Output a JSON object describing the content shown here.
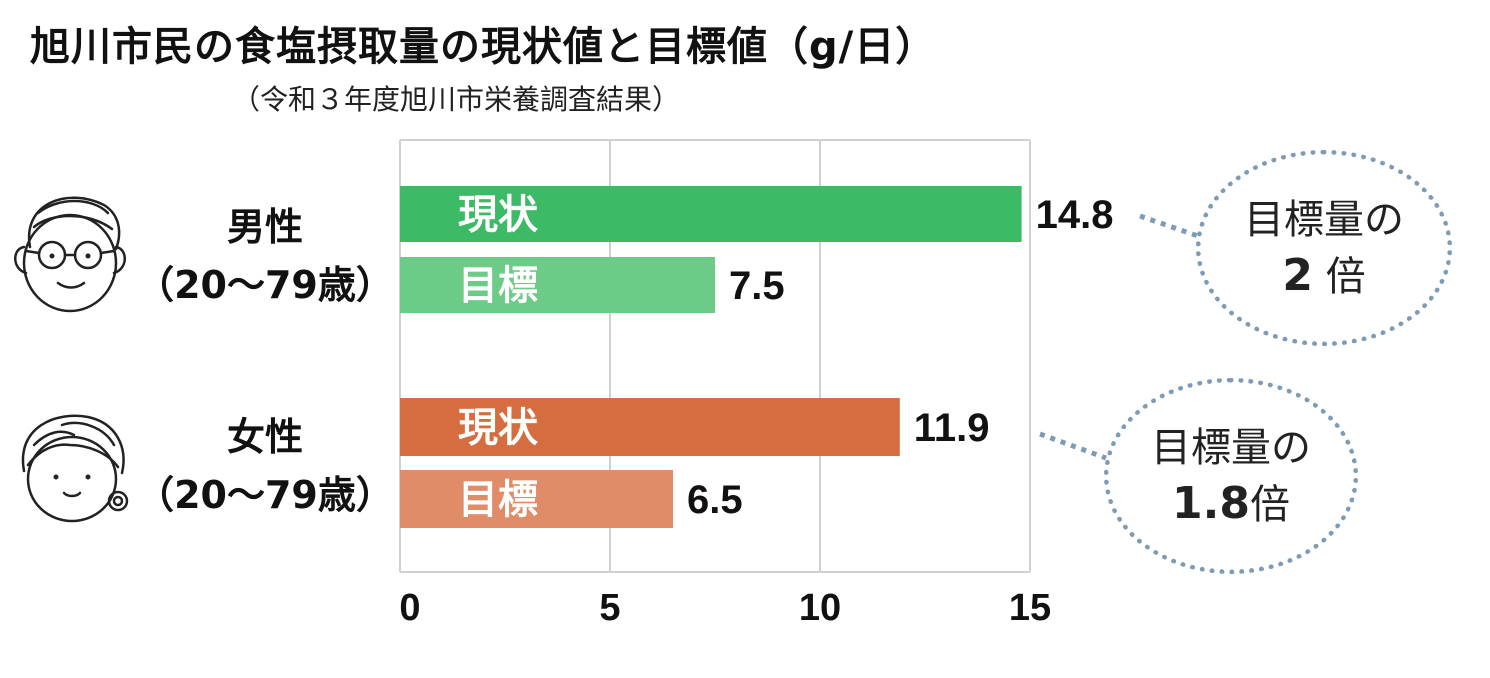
{
  "title": "旭川市民の食塩摂取量の現状値と目標値（g/日）",
  "subtitle": "（令和３年度旭川市栄養調査結果）",
  "groups": [
    {
      "name": "男性",
      "age": "（20～79歳）",
      "face": "man-with-glasses-face-icon"
    },
    {
      "name": "女性",
      "age": "（20～79歳）",
      "face": "woman-face-icon"
    }
  ],
  "callouts": [
    {
      "line1": "目標量の",
      "value": "2",
      "suffix": " 倍"
    },
    {
      "line1": "目標量の",
      "value": "1.8",
      "suffix": "倍"
    }
  ],
  "colors": {
    "male_current": "#3dba65",
    "male_target": "#6ccb87",
    "female_current": "#d56d40",
    "female_target": "#e08c69",
    "callout_dots": "#7e9bb5",
    "grid": "#d0d0d0"
  },
  "chart_data": {
    "type": "bar",
    "orientation": "horizontal",
    "xlim": [
      0,
      15
    ],
    "xticks": [
      "0",
      "5",
      "10",
      "15"
    ],
    "grid": true,
    "bars": [
      {
        "group": "男性",
        "label": "現状",
        "value": 14.8,
        "value_label": "14.8",
        "color": "#3dba65"
      },
      {
        "group": "男性",
        "label": "目標",
        "value": 7.5,
        "value_label": "7.5",
        "color": "#6ccb87"
      },
      {
        "group": "女性",
        "label": "現状",
        "value": 11.9,
        "value_label": "11.9",
        "color": "#d56d40"
      },
      {
        "group": "女性",
        "label": "目標",
        "value": 6.5,
        "value_label": "6.5",
        "color": "#e08c69"
      }
    ]
  }
}
